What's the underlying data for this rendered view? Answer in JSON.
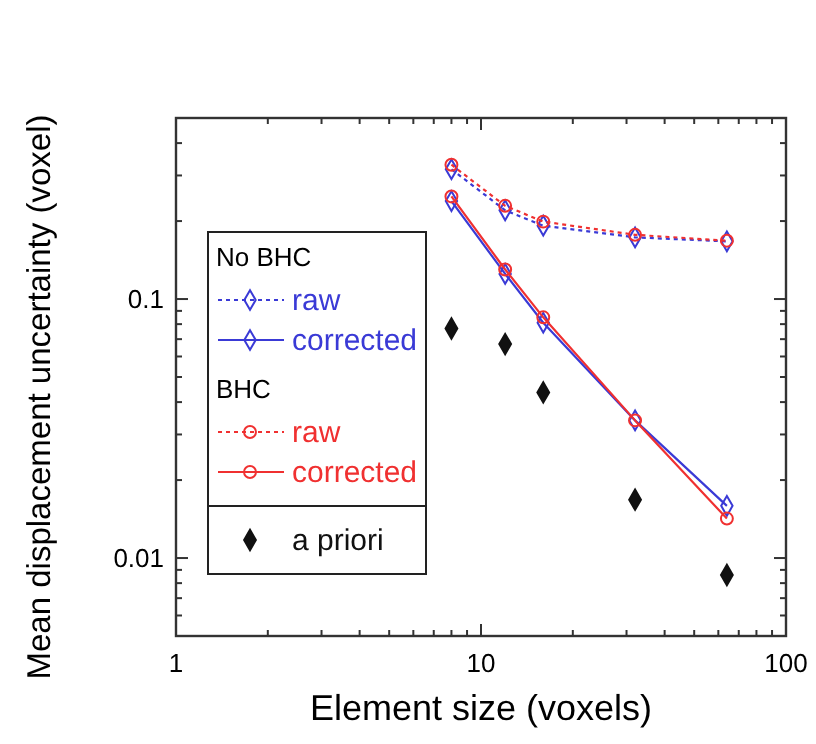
{
  "chart_data": {
    "type": "line",
    "xlabel": "Element size (voxels)",
    "ylabel": "Mean displacement uncertainty (voxel)",
    "log": "xy",
    "xlim": [
      1,
      100
    ],
    "ylim": [
      0.005,
      0.5
    ],
    "xticks": [
      1,
      {
        "value": 2,
        "label": null
      },
      {
        "value": 3,
        "label": null
      },
      {
        "value": 4,
        "label": null
      },
      {
        "value": 5,
        "label": null
      },
      {
        "value": 6,
        "label": null
      },
      {
        "value": 7,
        "label": null
      },
      {
        "value": 8,
        "label": null
      },
      {
        "value": 9,
        "label": null
      },
      10,
      {
        "value": 20,
        "label": null
      },
      {
        "value": 30,
        "label": null
      },
      {
        "value": 40,
        "label": null
      },
      {
        "value": 50,
        "label": null
      },
      {
        "value": 60,
        "label": null
      },
      {
        "value": 70,
        "label": null
      },
      {
        "value": 80,
        "label": null
      },
      {
        "value": 90,
        "label": null
      },
      100
    ],
    "yticks": [
      {
        "value": 0.006,
        "label": null
      },
      {
        "value": 0.007,
        "label": null
      },
      {
        "value": 0.008,
        "label": null
      },
      {
        "value": 0.009,
        "label": null
      },
      0.01,
      {
        "value": 0.02,
        "label": null
      },
      {
        "value": 0.03,
        "label": null
      },
      {
        "value": 0.04,
        "label": null
      },
      {
        "value": 0.05,
        "label": null
      },
      {
        "value": 0.06,
        "label": null
      },
      {
        "value": 0.07,
        "label": null
      },
      {
        "value": 0.08,
        "label": null
      },
      {
        "value": 0.09,
        "label": null
      },
      0.1,
      {
        "value": 0.2,
        "label": null
      },
      {
        "value": 0.3,
        "label": null
      },
      {
        "value": 0.4,
        "label": null
      }
    ],
    "x": [
      8,
      12,
      16,
      32,
      64
    ],
    "legend": "left",
    "grid": false,
    "annotations": [
      "No BHC",
      "BHC"
    ],
    "series": [
      {
        "name": "raw",
        "color": "#3a3ad6",
        "values": [
          0.317,
          0.22,
          0.192,
          0.173,
          0.167
        ],
        "marker": "diamond",
        "line_style": "dotted"
      },
      {
        "name": "corrected",
        "color": "#3a3ad6",
        "values": [
          0.239,
          0.125,
          0.081,
          0.034,
          0.0159
        ],
        "marker": "diamond",
        "line_style": "solid"
      },
      {
        "name": "raw",
        "color": "#f03030",
        "values": [
          0.33,
          0.229,
          0.199,
          0.177,
          0.168
        ],
        "marker": "circle",
        "line_style": "dotted"
      },
      {
        "name": "corrected",
        "color": "#f03030",
        "values": [
          0.249,
          0.13,
          0.085,
          0.034,
          0.0142
        ],
        "marker": "circle",
        "line_style": "solid"
      },
      {
        "name": "a priori",
        "type": "scatter",
        "color": "#111111",
        "values": [
          0.077,
          0.067,
          0.0436,
          0.0168,
          0.0086
        ],
        "marker": "diamond"
      }
    ]
  }
}
